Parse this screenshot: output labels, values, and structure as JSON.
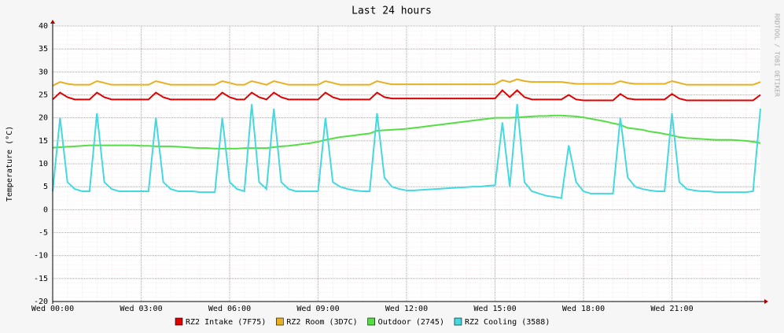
{
  "chart_data": {
    "type": "line",
    "title": "Last 24 hours",
    "y_label": "Temperature (°C)",
    "watermark": "RRDTOOL / TOBI OETIKER",
    "x": [
      0,
      0.25,
      0.5,
      0.75,
      1,
      1.25,
      1.5,
      1.75,
      2,
      2.25,
      2.5,
      2.75,
      3,
      3.25,
      3.5,
      3.75,
      4,
      4.25,
      4.5,
      4.75,
      5,
      5.25,
      5.5,
      5.75,
      6,
      6.25,
      6.5,
      6.75,
      7,
      7.25,
      7.5,
      7.75,
      8,
      8.25,
      8.5,
      8.75,
      9,
      9.25,
      9.5,
      9.75,
      10,
      10.25,
      10.5,
      10.75,
      11,
      11.25,
      11.5,
      11.75,
      12,
      12.25,
      12.5,
      12.75,
      13,
      13.25,
      13.5,
      13.75,
      14,
      14.25,
      14.5,
      14.75,
      15,
      15.25,
      15.5,
      15.75,
      16,
      16.25,
      16.5,
      16.75,
      17,
      17.25,
      17.5,
      17.75,
      18,
      18.25,
      18.5,
      18.75,
      19,
      19.25,
      19.5,
      19.75,
      20,
      20.25,
      20.5,
      20.75,
      21,
      21.25,
      21.5,
      21.75,
      22,
      22.25,
      22.5,
      22.75,
      23,
      23.25,
      23.5,
      23.75,
      24
    ],
    "xlim": [
      0,
      24
    ],
    "xticks": [
      {
        "value": 0,
        "label": "Wed 00:00"
      },
      {
        "value": 3,
        "label": "Wed 03:00"
      },
      {
        "value": 6,
        "label": "Wed 06:00"
      },
      {
        "value": 9,
        "label": "Wed 09:00"
      },
      {
        "value": 12,
        "label": "Wed 12:00"
      },
      {
        "value": 15,
        "label": "Wed 15:00"
      },
      {
        "value": 18,
        "label": "Wed 18:00"
      },
      {
        "value": 21,
        "label": "Wed 21:00"
      }
    ],
    "ylim": [
      -20,
      40
    ],
    "yticks": [
      -20,
      -15,
      -10,
      -5,
      0,
      5,
      10,
      15,
      20,
      25,
      30,
      35,
      40
    ],
    "grid": true,
    "legend": "bottom",
    "series": [
      {
        "name": "RZ2 Intake (7F75)",
        "color": "#e00000",
        "values": [
          24,
          25.5,
          24.5,
          24,
          24,
          24,
          25.5,
          24.5,
          24,
          24,
          24,
          24,
          24,
          24,
          25.5,
          24.5,
          24,
          24,
          24,
          24,
          24,
          24,
          24,
          25.5,
          24.5,
          24,
          24,
          25.5,
          24.5,
          24,
          25.5,
          24.5,
          24,
          24,
          24,
          24,
          24,
          25.5,
          24.5,
          24,
          24,
          24,
          24,
          24,
          25.5,
          24.5,
          24.2,
          24.2,
          24.2,
          24.2,
          24.2,
          24.2,
          24.2,
          24.2,
          24.2,
          24.2,
          24.2,
          24.2,
          24.2,
          24.2,
          24.2,
          26,
          24.5,
          26,
          24.5,
          24,
          24,
          24,
          24,
          24,
          25,
          24,
          23.8,
          23.8,
          23.8,
          23.8,
          23.8,
          25.2,
          24.2,
          24,
          24,
          24,
          24,
          24,
          25.2,
          24.2,
          23.8,
          23.8,
          23.8,
          23.8,
          23.8,
          23.8,
          23.8,
          23.8,
          23.8,
          23.8,
          25
        ]
      },
      {
        "name": "RZ2 Room (3D7C)",
        "color": "#e8b020",
        "values": [
          27,
          27.8,
          27.4,
          27.2,
          27.2,
          27.2,
          28,
          27.6,
          27.2,
          27.2,
          27.2,
          27.2,
          27.2,
          27.2,
          28,
          27.6,
          27.2,
          27.2,
          27.2,
          27.2,
          27.2,
          27.2,
          27.2,
          28,
          27.6,
          27.2,
          27.2,
          28,
          27.6,
          27.2,
          28,
          27.6,
          27.2,
          27.2,
          27.2,
          27.2,
          27.2,
          28,
          27.6,
          27.2,
          27.2,
          27.2,
          27.2,
          27.2,
          28,
          27.6,
          27.3,
          27.3,
          27.3,
          27.3,
          27.3,
          27.3,
          27.3,
          27.3,
          27.3,
          27.3,
          27.3,
          27.3,
          27.3,
          27.3,
          27.3,
          28.2,
          27.8,
          28.4,
          28,
          27.8,
          27.8,
          27.8,
          27.8,
          27.8,
          27.6,
          27.4,
          27.4,
          27.4,
          27.4,
          27.4,
          27.4,
          28,
          27.6,
          27.4,
          27.4,
          27.4,
          27.4,
          27.4,
          28,
          27.6,
          27.2,
          27.2,
          27.2,
          27.2,
          27.2,
          27.2,
          27.2,
          27.2,
          27.2,
          27.2,
          27.8
        ]
      },
      {
        "name": "Outdoor (2745)",
        "color": "#55dd44",
        "values": [
          13.5,
          13.6,
          13.7,
          13.8,
          13.9,
          14,
          14,
          14,
          14,
          14,
          14,
          14,
          13.9,
          13.9,
          13.8,
          13.8,
          13.8,
          13.7,
          13.6,
          13.5,
          13.4,
          13.4,
          13.3,
          13.3,
          13.3,
          13.3,
          13.4,
          13.4,
          13.4,
          13.4,
          13.6,
          13.8,
          13.9,
          14.1,
          14.3,
          14.5,
          14.8,
          15.2,
          15.5,
          15.8,
          16,
          16.2,
          16.4,
          16.6,
          17.2,
          17.3,
          17.4,
          17.5,
          17.6,
          17.8,
          18,
          18.2,
          18.4,
          18.6,
          18.8,
          19,
          19.2,
          19.4,
          19.6,
          19.8,
          20,
          20,
          20,
          20.1,
          20.2,
          20.3,
          20.4,
          20.4,
          20.5,
          20.5,
          20.4,
          20.3,
          20.1,
          19.8,
          19.5,
          19.2,
          18.8,
          18.5,
          17.8,
          17.6,
          17.4,
          17,
          16.8,
          16.5,
          16.2,
          15.8,
          15.6,
          15.5,
          15.4,
          15.3,
          15.2,
          15.2,
          15.2,
          15.1,
          15,
          14.8,
          14.5
        ]
      },
      {
        "name": "RZ2 Cooling (3588)",
        "color": "#44d8e0",
        "values": [
          4,
          20,
          6,
          4.5,
          4,
          4,
          21,
          6,
          4.5,
          4,
          4,
          4,
          4,
          4,
          20,
          6,
          4.5,
          4,
          4,
          4,
          3.8,
          3.8,
          3.8,
          20,
          6,
          4.5,
          4,
          23,
          6,
          4.5,
          22,
          6,
          4.5,
          4,
          4,
          4,
          4,
          20,
          6,
          5,
          4.5,
          4.2,
          4,
          4,
          21,
          7,
          5,
          4.5,
          4.2,
          4.2,
          4.3,
          4.4,
          4.5,
          4.6,
          4.7,
          4.8,
          4.9,
          5,
          5,
          5.2,
          5.3,
          19,
          5,
          23,
          6,
          4,
          3.5,
          3,
          2.8,
          2.5,
          14,
          6,
          4,
          3.5,
          3.5,
          3.5,
          3.5,
          20,
          7,
          5,
          4.5,
          4.2,
          4,
          4,
          21,
          6,
          4.5,
          4.2,
          4,
          4,
          3.8,
          3.8,
          3.8,
          3.8,
          3.8,
          4,
          22
        ]
      }
    ]
  }
}
